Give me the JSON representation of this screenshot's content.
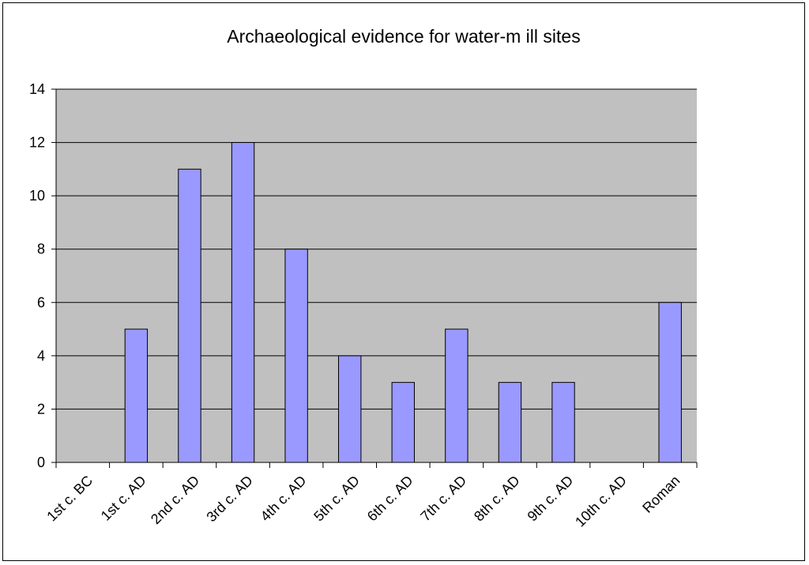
{
  "chart_data": {
    "type": "bar",
    "title": "Archaeological evidence for water-m ill sites",
    "xlabel": "",
    "ylabel": "",
    "categories": [
      "1st c. BC",
      "1st c. AD",
      "2nd c. AD",
      "3rd c. AD",
      "4th c. AD",
      "5th c. AD",
      "6th c. AD",
      "7th c. AD",
      "8th c. AD",
      "9th c. AD",
      "10th c. AD",
      "Roman"
    ],
    "values": [
      0,
      5,
      11,
      12,
      8,
      4,
      3,
      5,
      3,
      3,
      0,
      6
    ],
    "ylim": [
      0,
      14
    ],
    "yticks": [
      0,
      2,
      4,
      6,
      8,
      10,
      12,
      14
    ],
    "grid": true,
    "legend": "none",
    "colors": {
      "plot_background": "#c0c0c0",
      "bar_fill": "#9999ff",
      "bar_stroke": "#000000",
      "gridline": "#000000"
    }
  }
}
